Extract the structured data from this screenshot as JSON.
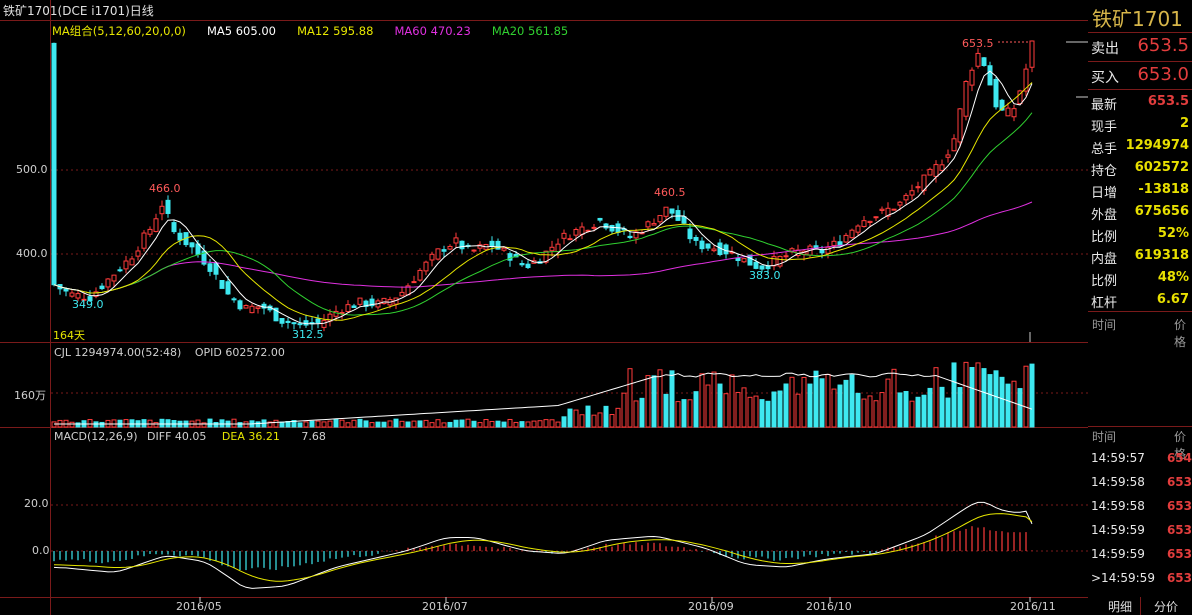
{
  "title": "铁矿1701(DCE i1701)日线",
  "legend": {
    "ma_group": "MA组合(5,12,60,20,0,0)",
    "ma5": "MA5 605.00",
    "ma12": "MA12 595.88",
    "ma60": "MA60 470.23",
    "ma20": "MA20 561.85"
  },
  "colors": {
    "up": "#ff3b3b",
    "down": "#3ee8f0",
    "ma5": "#ffffff",
    "ma12": "#e6e600",
    "ma60": "#e030e0",
    "ma20": "#30d030",
    "grid": "#7a1a1a"
  },
  "price_axis": {
    "ticks": [
      "500.0",
      "400.0"
    ],
    "days_label": "164天"
  },
  "annotations": {
    "high": "653.5",
    "peak1": "466.0",
    "low1": "349.0",
    "low2": "312.5",
    "peak2": "460.5",
    "low3": "383.0"
  },
  "volume_panel": {
    "header_cjl": "CJL  1294974.00(52:48)",
    "header_opid": "OPID  602572.00",
    "tick": "160万"
  },
  "macd_panel": {
    "header": "MACD(12,26,9)",
    "diff": "DIFF  40.05",
    "dea": "DEA  36.21",
    "macd": "7.68",
    "ticks": [
      "20.0",
      "0.0"
    ]
  },
  "x_axis": [
    "2016/05",
    "2016/07",
    "2016/09",
    "2016/10",
    "2016/11"
  ],
  "right_panel": {
    "symbol": "铁矿1701",
    "sell_label": "卖出",
    "sell_value": "653.5",
    "buy_label": "买入",
    "buy_value": "653.0",
    "stats": [
      {
        "k": "最新",
        "v": "653.5",
        "c": "#e23d3d"
      },
      {
        "k": "现手",
        "v": "2",
        "c": "#e8e000"
      },
      {
        "k": "总手",
        "v": "1294974",
        "c": "#e8e000"
      },
      {
        "k": "持仓",
        "v": "602572",
        "c": "#e8e000"
      },
      {
        "k": "日增",
        "v": "-13818",
        "c": "#e8e000"
      },
      {
        "k": "外盘",
        "v": "675656",
        "c": "#e8e000"
      },
      {
        "k": "比例",
        "v": "52%",
        "c": "#e8e000"
      },
      {
        "k": "内盘",
        "v": "619318",
        "c": "#e8e000"
      },
      {
        "k": "比例",
        "v": "48%",
        "c": "#e8e000"
      },
      {
        "k": "杠杆",
        "v": "6.67",
        "c": "#e8e000"
      }
    ],
    "hdr_time": "时间",
    "hdr_price": "价格",
    "ticks": [
      {
        "t": "14:59:57",
        "p": "654"
      },
      {
        "t": "14:59:58",
        "p": "653"
      },
      {
        "t": "14:59:58",
        "p": "653"
      },
      {
        "t": "14:59:59",
        "p": "653"
      },
      {
        "t": "14:59:59",
        "p": "653"
      },
      {
        "t": ">14:59:59",
        "p": "653"
      }
    ],
    "tab_detail": "明细",
    "tab_price": "分价"
  }
}
